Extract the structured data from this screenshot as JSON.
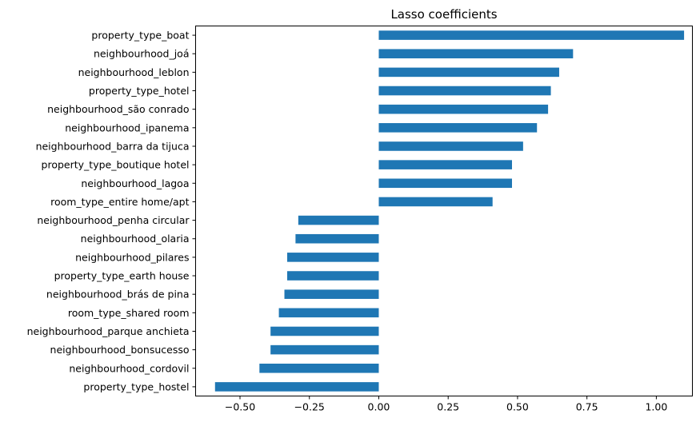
{
  "chart_data": {
    "type": "bar",
    "orientation": "horizontal",
    "title": "Lasso coefficients",
    "xlabel": "",
    "ylabel": "",
    "xlim": [
      -0.66,
      1.13
    ],
    "xticks": [
      -0.5,
      -0.25,
      0.0,
      0.25,
      0.5,
      0.75,
      1.0
    ],
    "xtick_labels": [
      "−0.50",
      "−0.25",
      "0.00",
      "0.25",
      "0.50",
      "0.75",
      "1.00"
    ],
    "grid": false,
    "bar_color": "#1f77b4",
    "categories": [
      "property_type_boat",
      "neighbourhood_joá",
      "neighbourhood_leblon",
      "property_type_hotel",
      "neighbourhood_são conrado",
      "neighbourhood_ipanema",
      "neighbourhood_barra da tijuca",
      "property_type_boutique hotel",
      "neighbourhood_lagoa",
      "room_type_entire home/apt",
      "neighbourhood_penha circular",
      "neighbourhood_olaria",
      "neighbourhood_pilares",
      "property_type_earth house",
      "neighbourhood_brás de pina",
      "room_type_shared room",
      "neighbourhood_parque anchieta",
      "neighbourhood_bonsucesso",
      "neighbourhood_cordovil",
      "property_type_hostel"
    ],
    "values": [
      1.1,
      0.7,
      0.65,
      0.62,
      0.61,
      0.57,
      0.52,
      0.48,
      0.48,
      0.41,
      -0.29,
      -0.3,
      -0.33,
      -0.33,
      -0.34,
      -0.36,
      -0.39,
      -0.39,
      -0.43,
      -0.59
    ]
  }
}
